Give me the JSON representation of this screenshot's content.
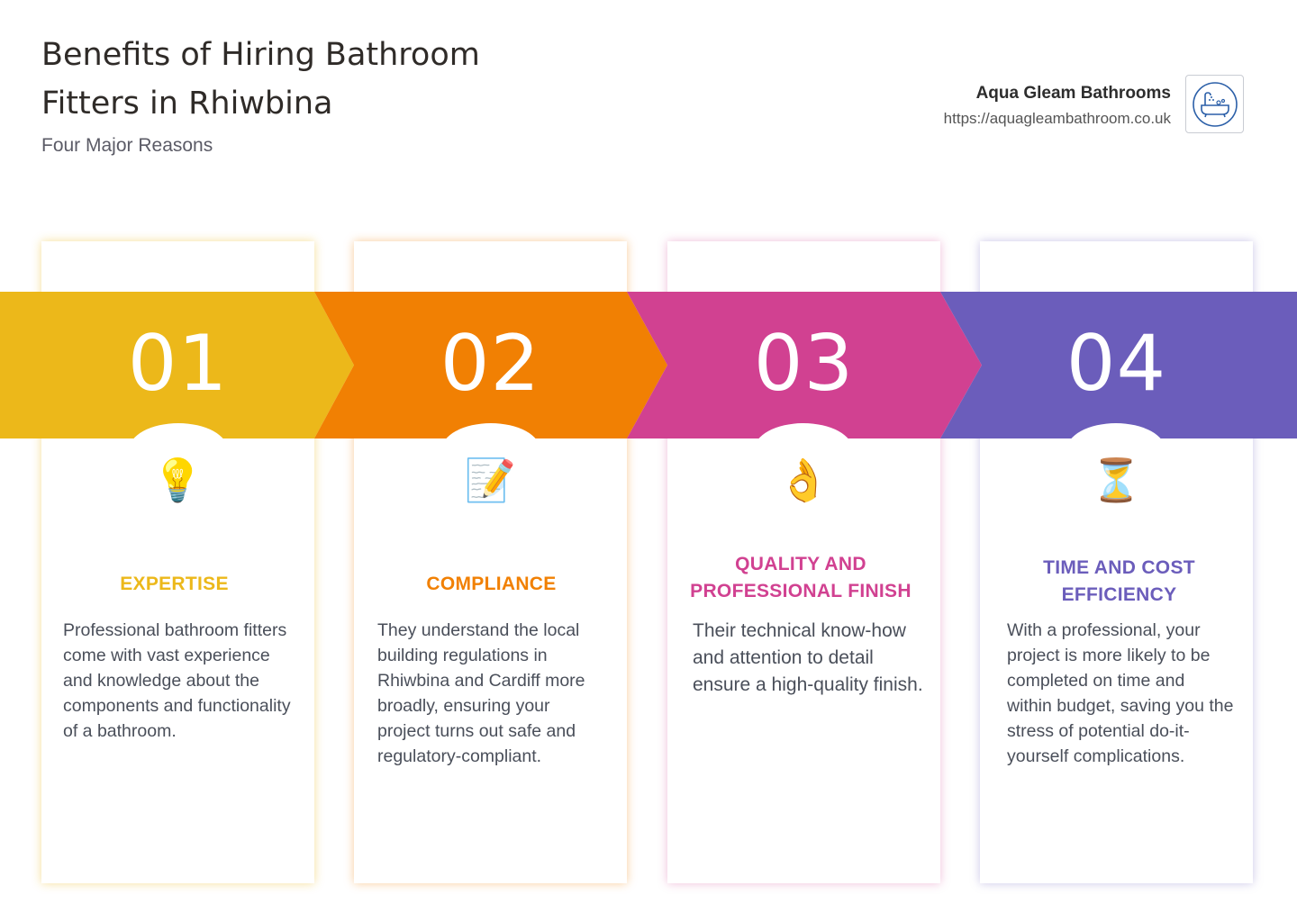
{
  "header": {
    "title": "Benefits of Hiring Bathroom Fitters in Rhiwbina",
    "subtitle": "Four Major Reasons"
  },
  "brand": {
    "name": "Aqua Gleam Bathrooms",
    "url": "https://aquagleambathroom.co.uk",
    "logo_icon": "bathtub-icon"
  },
  "colors": {
    "yellow": "#ECB81A",
    "orange": "#F18003",
    "pink": "#D14191",
    "purple": "#6B5DBB"
  },
  "steps": [
    {
      "number": "01",
      "icon": "lightbulb-icon",
      "emoji": "💡",
      "heading": "EXPERTISE",
      "text": "Professional bathroom fitters come with vast experience and knowledge about the components and functionality of a bathroom."
    },
    {
      "number": "02",
      "icon": "memo-icon",
      "emoji": "📝",
      "heading": "COMPLIANCE",
      "text": "They understand the local building regulations in Rhiwbina and Cardiff more broadly, ensuring your project turns out safe and regulatory-compliant."
    },
    {
      "number": "03",
      "icon": "ok-hand-icon",
      "emoji": "👌",
      "heading": "QUALITY AND PROFESSIONAL FINISH",
      "text": "Their technical know-how and attention to detail ensure a high-quality finish."
    },
    {
      "number": "04",
      "icon": "hourglass-icon",
      "emoji": "⏳",
      "heading": "TIME AND COST EFFICIENCY",
      "text": "With a professional, your project is more likely to be completed on time and within budget, saving you the stress of potential do-it-yourself complications."
    }
  ]
}
